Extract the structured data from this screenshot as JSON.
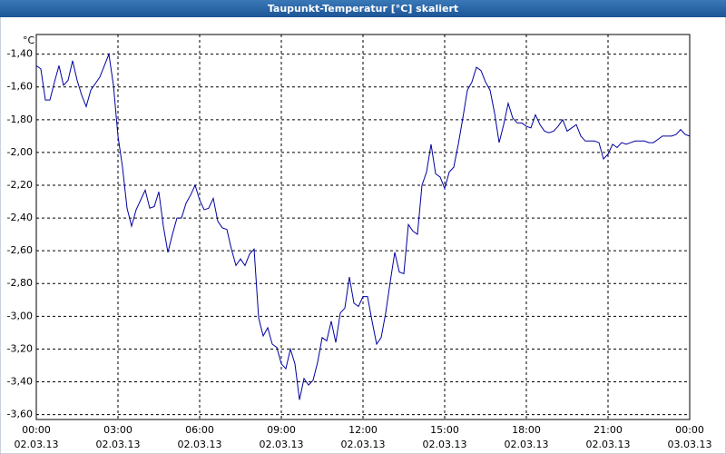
{
  "chart_data": {
    "type": "line",
    "title": "Taupunkt-Temperatur [°C] skaliert",
    "y_label": "°C",
    "x": [
      0,
      10,
      20,
      30,
      40,
      50,
      60,
      70,
      80,
      90,
      100,
      110,
      120,
      130,
      140,
      150,
      160,
      170,
      180,
      190,
      200,
      210,
      220,
      230,
      240,
      250,
      260,
      270,
      280,
      290,
      300,
      310,
      320,
      330,
      340,
      350,
      360,
      370,
      380,
      390,
      400,
      410,
      420,
      430,
      440,
      450,
      460,
      470,
      480,
      490,
      500,
      510,
      520,
      530,
      540,
      550,
      560,
      570,
      580,
      590,
      600,
      610,
      620,
      630,
      640,
      650,
      660,
      670,
      680,
      690,
      700,
      710,
      720,
      730,
      740,
      750,
      760,
      770,
      780,
      790,
      800,
      810,
      820,
      830,
      840,
      850,
      860,
      870,
      880,
      890,
      900,
      910,
      920,
      930,
      940,
      950,
      960,
      970,
      980,
      990,
      1000,
      1010,
      1020,
      1030,
      1040,
      1050,
      1060,
      1070,
      1080,
      1090,
      1100,
      1110,
      1120,
      1130,
      1140,
      1150,
      1160,
      1170,
      1180,
      1190,
      1200,
      1210,
      1220,
      1230,
      1240,
      1250,
      1260,
      1270,
      1280,
      1290,
      1300,
      1310,
      1320,
      1330,
      1340,
      1350,
      1360,
      1370,
      1380,
      1390,
      1400,
      1410,
      1420,
      1430,
      1440
    ],
    "series": [
      {
        "color": "#0000a0",
        "values": [
          -1.47,
          -1.49,
          -1.68,
          -1.68,
          -1.57,
          -1.47,
          -1.59,
          -1.56,
          -1.44,
          -1.56,
          -1.65,
          -1.72,
          -1.62,
          -1.58,
          -1.54,
          -1.47,
          -1.4,
          -1.59,
          -1.9,
          -2.09,
          -2.34,
          -2.45,
          -2.35,
          -2.29,
          -2.23,
          -2.34,
          -2.33,
          -2.24,
          -2.45,
          -2.61,
          -2.5,
          -2.4,
          -2.4,
          -2.31,
          -2.26,
          -2.2,
          -2.29,
          -2.35,
          -2.34,
          -2.28,
          -2.42,
          -2.46,
          -2.47,
          -2.59,
          -2.69,
          -2.65,
          -2.69,
          -2.62,
          -2.59,
          -3.01,
          -3.12,
          -3.07,
          -3.17,
          -3.19,
          -3.29,
          -3.32,
          -3.2,
          -3.29,
          -3.51,
          -3.38,
          -3.42,
          -3.39,
          -3.28,
          -3.13,
          -3.15,
          -3.03,
          -3.16,
          -2.98,
          -2.95,
          -2.76,
          -2.92,
          -2.94,
          -2.88,
          -2.88,
          -3.03,
          -3.17,
          -3.13,
          -2.98,
          -2.79,
          -2.61,
          -2.73,
          -2.74,
          -2.44,
          -2.48,
          -2.5,
          -2.2,
          -2.12,
          -1.95,
          -2.13,
          -2.15,
          -2.22,
          -2.12,
          -2.09,
          -1.95,
          -1.79,
          -1.62,
          -1.57,
          -1.48,
          -1.5,
          -1.57,
          -1.62,
          -1.76,
          -1.94,
          -1.83,
          -1.7,
          -1.79,
          -1.82,
          -1.82,
          -1.84,
          -1.85,
          -1.77,
          -1.83,
          -1.87,
          -1.88,
          -1.87,
          -1.84,
          -1.8,
          -1.87,
          -1.85,
          -1.83,
          -1.9,
          -1.93,
          -1.93,
          -1.93,
          -1.94,
          -2.04,
          -2.01,
          -1.95,
          -1.97,
          -1.94,
          -1.95,
          -1.94,
          -1.93,
          -1.93,
          -1.93,
          -1.94,
          -1.94,
          -1.92,
          -1.9,
          -1.9,
          -1.9,
          -1.89,
          -1.86,
          -1.89,
          -1.9
        ]
      }
    ],
    "xlim": [
      0,
      1440
    ],
    "xticks": [
      {
        "value": 0,
        "label": [
          "00:00",
          "02.03.13"
        ]
      },
      {
        "value": 180,
        "label": [
          "03:00",
          "02.03.13"
        ]
      },
      {
        "value": 360,
        "label": [
          "06:00",
          "02.03.13"
        ]
      },
      {
        "value": 540,
        "label": [
          "09:00",
          "02.03.13"
        ]
      },
      {
        "value": 720,
        "label": [
          "12:00",
          "02.03.13"
        ]
      },
      {
        "value": 900,
        "label": [
          "15:00",
          "02.03.13"
        ]
      },
      {
        "value": 1080,
        "label": [
          "18:00",
          "02.03.13"
        ]
      },
      {
        "value": 1260,
        "label": [
          "21:00",
          "02.03.13"
        ]
      },
      {
        "value": 1440,
        "label": [
          "00:00",
          "03.03.13"
        ]
      }
    ],
    "ylim": [
      -3.63,
      -1.28
    ],
    "yticks": [
      {
        "value": -1.4,
        "label": "-1,40"
      },
      {
        "value": -1.6,
        "label": "-1,60"
      },
      {
        "value": -1.8,
        "label": "-1,80"
      },
      {
        "value": -2.0,
        "label": "-2,00"
      },
      {
        "value": -2.2,
        "label": "-2,20"
      },
      {
        "value": -2.4,
        "label": "-2,40"
      },
      {
        "value": -2.6,
        "label": "-2,60"
      },
      {
        "value": -2.8,
        "label": "-2,80"
      },
      {
        "value": -3.0,
        "label": "-3,00"
      },
      {
        "value": -3.2,
        "label": "-3,20"
      },
      {
        "value": -3.4,
        "label": "-3,40"
      },
      {
        "value": -3.6,
        "label": "-3,60"
      }
    ],
    "grid": true
  }
}
